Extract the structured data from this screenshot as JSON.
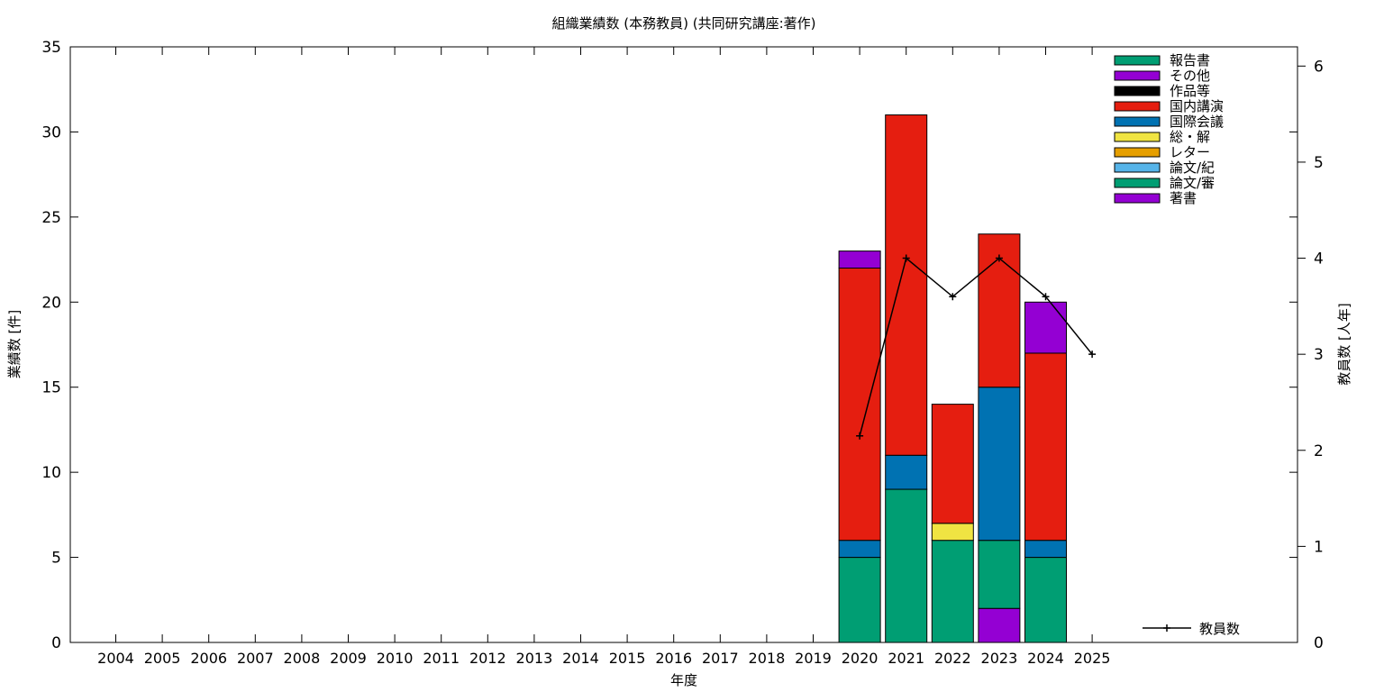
{
  "chart_data": {
    "type": "bar",
    "title": "組織業績数 (本務教員) (共同研究講座:著作)",
    "xlabel": "年度",
    "ylabel": "業績数 [件]",
    "y2label": "教員数 [人年]",
    "categories": [
      "2004",
      "2005",
      "2006",
      "2007",
      "2008",
      "2009",
      "2010",
      "2011",
      "2012",
      "2013",
      "2014",
      "2015",
      "2016",
      "2017",
      "2018",
      "2019",
      "2020",
      "2021",
      "2022",
      "2023",
      "2024",
      "2025"
    ],
    "ylim": [
      0,
      35
    ],
    "y_ticks": [
      "0",
      "5",
      "10",
      "15",
      "20",
      "25",
      "30",
      "35"
    ],
    "y2lim": [
      0,
      6.2
    ],
    "y2_ticks": [
      "0",
      "1",
      "2",
      "3",
      "4",
      "5",
      "6"
    ],
    "grid": false,
    "legend_position": "top-right",
    "series": [
      {
        "name": "著書",
        "color": "#9400d3",
        "values": [
          0,
          0,
          0,
          0,
          0,
          0,
          0,
          0,
          0,
          0,
          0,
          0,
          0,
          0,
          0,
          0,
          0,
          0,
          0,
          2,
          0,
          0
        ]
      },
      {
        "name": "論文/審",
        "color": "#009e73",
        "values": [
          0,
          0,
          0,
          0,
          0,
          0,
          0,
          0,
          0,
          0,
          0,
          0,
          0,
          0,
          0,
          0,
          5,
          9,
          6,
          4,
          5,
          0
        ]
      },
      {
        "name": "論文/紀",
        "color": "#56b4e9",
        "values": [
          0,
          0,
          0,
          0,
          0,
          0,
          0,
          0,
          0,
          0,
          0,
          0,
          0,
          0,
          0,
          0,
          0,
          0,
          0,
          0,
          0,
          0
        ]
      },
      {
        "name": "レター",
        "color": "#e69f00",
        "values": [
          0,
          0,
          0,
          0,
          0,
          0,
          0,
          0,
          0,
          0,
          0,
          0,
          0,
          0,
          0,
          0,
          0,
          0,
          0,
          0,
          0,
          0
        ]
      },
      {
        "name": "総・解",
        "color": "#f0e442",
        "values": [
          0,
          0,
          0,
          0,
          0,
          0,
          0,
          0,
          0,
          0,
          0,
          0,
          0,
          0,
          0,
          0,
          0,
          0,
          1,
          0,
          0,
          0
        ]
      },
      {
        "name": "国際会議",
        "color": "#0072b2",
        "values": [
          0,
          0,
          0,
          0,
          0,
          0,
          0,
          0,
          0,
          0,
          0,
          0,
          0,
          0,
          0,
          0,
          1,
          2,
          0,
          9,
          1,
          0
        ]
      },
      {
        "name": "国内講演",
        "color": "#e51e10",
        "values": [
          0,
          0,
          0,
          0,
          0,
          0,
          0,
          0,
          0,
          0,
          0,
          0,
          0,
          0,
          0,
          0,
          16,
          20,
          7,
          9,
          11,
          0
        ]
      },
      {
        "name": "作品等",
        "color": "#000000",
        "values": [
          0,
          0,
          0,
          0,
          0,
          0,
          0,
          0,
          0,
          0,
          0,
          0,
          0,
          0,
          0,
          0,
          0,
          0,
          0,
          0,
          0,
          0
        ]
      },
      {
        "name": "その他",
        "color": "#9400d3",
        "values": [
          0,
          0,
          0,
          0,
          0,
          0,
          0,
          0,
          0,
          0,
          0,
          0,
          0,
          0,
          0,
          0,
          1,
          0,
          0,
          0,
          3,
          0
        ]
      },
      {
        "name": "報告書",
        "color": "#009e73",
        "values": [
          0,
          0,
          0,
          0,
          0,
          0,
          0,
          0,
          0,
          0,
          0,
          0,
          0,
          0,
          0,
          0,
          0,
          0,
          0,
          0,
          0,
          0
        ]
      }
    ],
    "line_series": {
      "name": "教員数",
      "color": "#000000",
      "axis": "y2",
      "points": [
        {
          "x": "2020",
          "y": 2.15
        },
        {
          "x": "2021",
          "y": 4.0
        },
        {
          "x": "2022",
          "y": 3.6
        },
        {
          "x": "2023",
          "y": 4.0
        },
        {
          "x": "2024",
          "y": 3.6
        },
        {
          "x": "2025",
          "y": 3.0
        }
      ]
    }
  }
}
